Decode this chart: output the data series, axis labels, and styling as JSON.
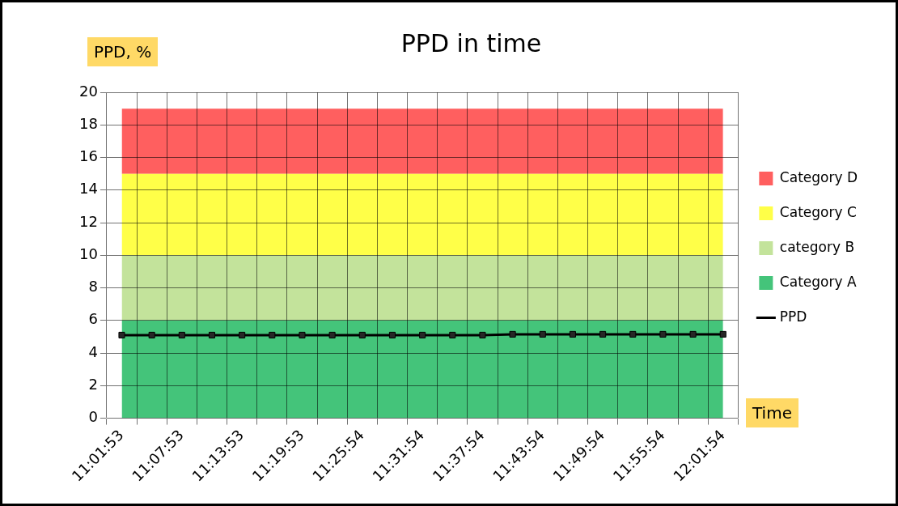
{
  "chart_data": {
    "type": "area",
    "title": "PPD in time",
    "xlabel": "Time",
    "ylabel": "PPD, %",
    "categories": [
      "11:01:53",
      null,
      "11:07:53",
      null,
      "11:13:53",
      null,
      "11:19:53",
      null,
      "11:25:54",
      null,
      "11:31:54",
      null,
      "11:37:54",
      null,
      "11:43:54",
      null,
      "11:49:54",
      null,
      "11:55:54",
      null,
      "12:01:54"
    ],
    "stacked": true,
    "ylim": [
      0,
      20
    ],
    "yticks": [
      0,
      2,
      4,
      6,
      8,
      10,
      12,
      14,
      16,
      18,
      20
    ],
    "grid": true,
    "legend": "right",
    "series": [
      {
        "name": "Category A",
        "color": "#44c47a",
        "values": [
          6,
          6,
          6,
          6,
          6,
          6,
          6,
          6,
          6,
          6,
          6,
          6,
          6,
          6,
          6,
          6,
          6,
          6,
          6,
          6,
          6
        ]
      },
      {
        "name": "category B",
        "color": "#c3e39b",
        "values": [
          4,
          4,
          4,
          4,
          4,
          4,
          4,
          4,
          4,
          4,
          4,
          4,
          4,
          4,
          4,
          4,
          4,
          4,
          4,
          4,
          4
        ]
      },
      {
        "name": "Category C",
        "color": "#ffff48",
        "values": [
          5,
          5,
          5,
          5,
          5,
          5,
          5,
          5,
          5,
          5,
          5,
          5,
          5,
          5,
          5,
          5,
          5,
          5,
          5,
          5,
          5
        ]
      },
      {
        "name": "Category D",
        "color": "#ff5f5f",
        "values": [
          4,
          4,
          4,
          4,
          4,
          4,
          4,
          4,
          4,
          4,
          4,
          4,
          4,
          4,
          4,
          4,
          4,
          4,
          4,
          4,
          4
        ]
      },
      {
        "name": "PPD",
        "type": "line",
        "marker": "square",
        "color": "#000000",
        "values": [
          5.1,
          5.1,
          5.1,
          5.1,
          5.1,
          5.1,
          5.1,
          5.1,
          5.1,
          5.1,
          5.1,
          5.1,
          5.1,
          5.15,
          5.15,
          5.15,
          5.15,
          5.15,
          5.15,
          5.15,
          5.15
        ]
      }
    ]
  }
}
